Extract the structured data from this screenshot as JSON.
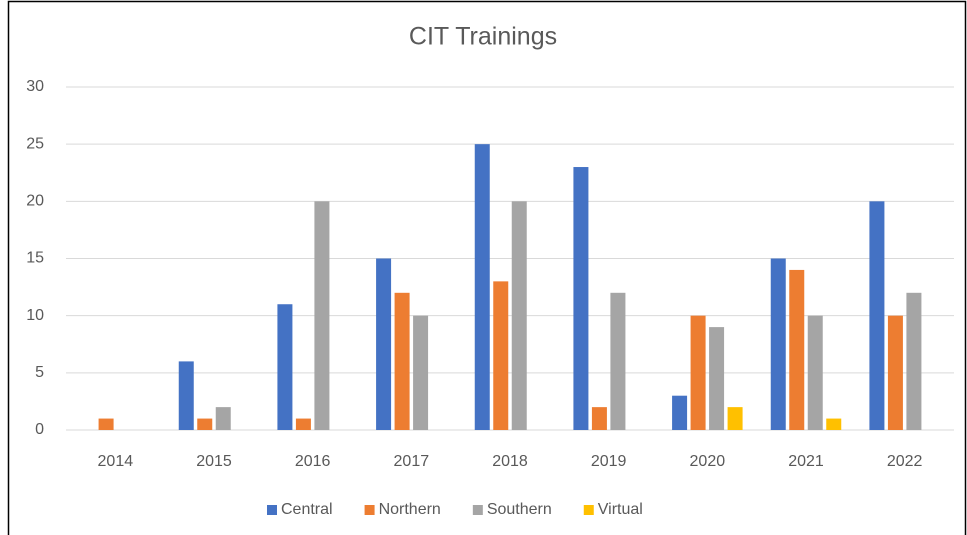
{
  "chart_data": {
    "type": "bar",
    "title": "CIT Trainings",
    "categories": [
      "2014",
      "2015",
      "2016",
      "2017",
      "2018",
      "2019",
      "2020",
      "2021",
      "2022"
    ],
    "series": [
      {
        "name": "Central",
        "color": "#4472c4",
        "values": [
          0,
          6,
          11,
          15,
          25,
          23,
          3,
          15,
          20
        ]
      },
      {
        "name": "Northern",
        "color": "#ed7d31",
        "values": [
          1,
          1,
          1,
          12,
          13,
          2,
          10,
          14,
          10
        ]
      },
      {
        "name": "Southern",
        "color": "#a5a5a5",
        "values": [
          0,
          2,
          20,
          10,
          20,
          12,
          9,
          10,
          12
        ]
      },
      {
        "name": "Virtual",
        "color": "#ffc000",
        "values": [
          0,
          0,
          0,
          0,
          0,
          0,
          2,
          1,
          0
        ]
      }
    ],
    "ylim": [
      0,
      30
    ],
    "yticks": [
      0,
      5,
      10,
      15,
      20,
      25,
      30
    ],
    "grid": true,
    "legend": "bottom"
  }
}
